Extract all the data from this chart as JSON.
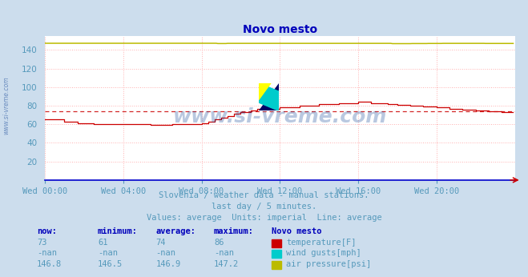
{
  "title": "Novo mesto",
  "bg_color": "#ccdded",
  "plot_bg_color": "#ffffff",
  "grid_color": "#ffb0b0",
  "xlabel_color": "#5599bb",
  "ylabel_color": "#5599bb",
  "title_color": "#0000bb",
  "watermark_text": "www.si-vreme.com",
  "watermark_color": "#1a4a99",
  "watermark_alpha": 0.3,
  "side_text": "www.si-vreme.com",
  "subtitle_lines": [
    "Slovenia / weather data - manual stations.",
    "last day / 5 minutes.",
    "Values: average  Units: imperial  Line: average"
  ],
  "subtitle_color": "#5599bb",
  "xtick_labels": [
    "Wed 00:00",
    "Wed 04:00",
    "Wed 08:00",
    "Wed 12:00",
    "Wed 16:00",
    "Wed 20:00"
  ],
  "xtick_positions": [
    0,
    48,
    96,
    144,
    192,
    240
  ],
  "ylim": [
    0,
    155
  ],
  "yticks": [
    20,
    40,
    60,
    80,
    100,
    120,
    140
  ],
  "xlim": [
    0,
    288
  ],
  "avg_line_value": 74,
  "avg_line_color": "#cc0000",
  "temp_color": "#cc0000",
  "pressure_color": "#bbbb00",
  "wind_gusts_color": "#00cccc",
  "xaxis_color": "#0000cc",
  "arrow_color": "#cc0000",
  "stats_headers": [
    "now:",
    "minimum:",
    "average:",
    "maximum:",
    "Novo mesto"
  ],
  "stats_data": [
    [
      "73",
      "61",
      "74",
      "86"
    ],
    [
      "-nan",
      "-nan",
      "-nan",
      "-nan"
    ],
    [
      "146.8",
      "146.5",
      "146.9",
      "147.2"
    ]
  ],
  "stats_labels": [
    "temperature[F]",
    "wind gusts[mph]",
    "air pressure[psi]"
  ],
  "box_colors": [
    "#cc0000",
    "#00cccc",
    "#bbbb00"
  ],
  "stats_color": "#5599bb",
  "stats_bold_color": "#0000bb"
}
